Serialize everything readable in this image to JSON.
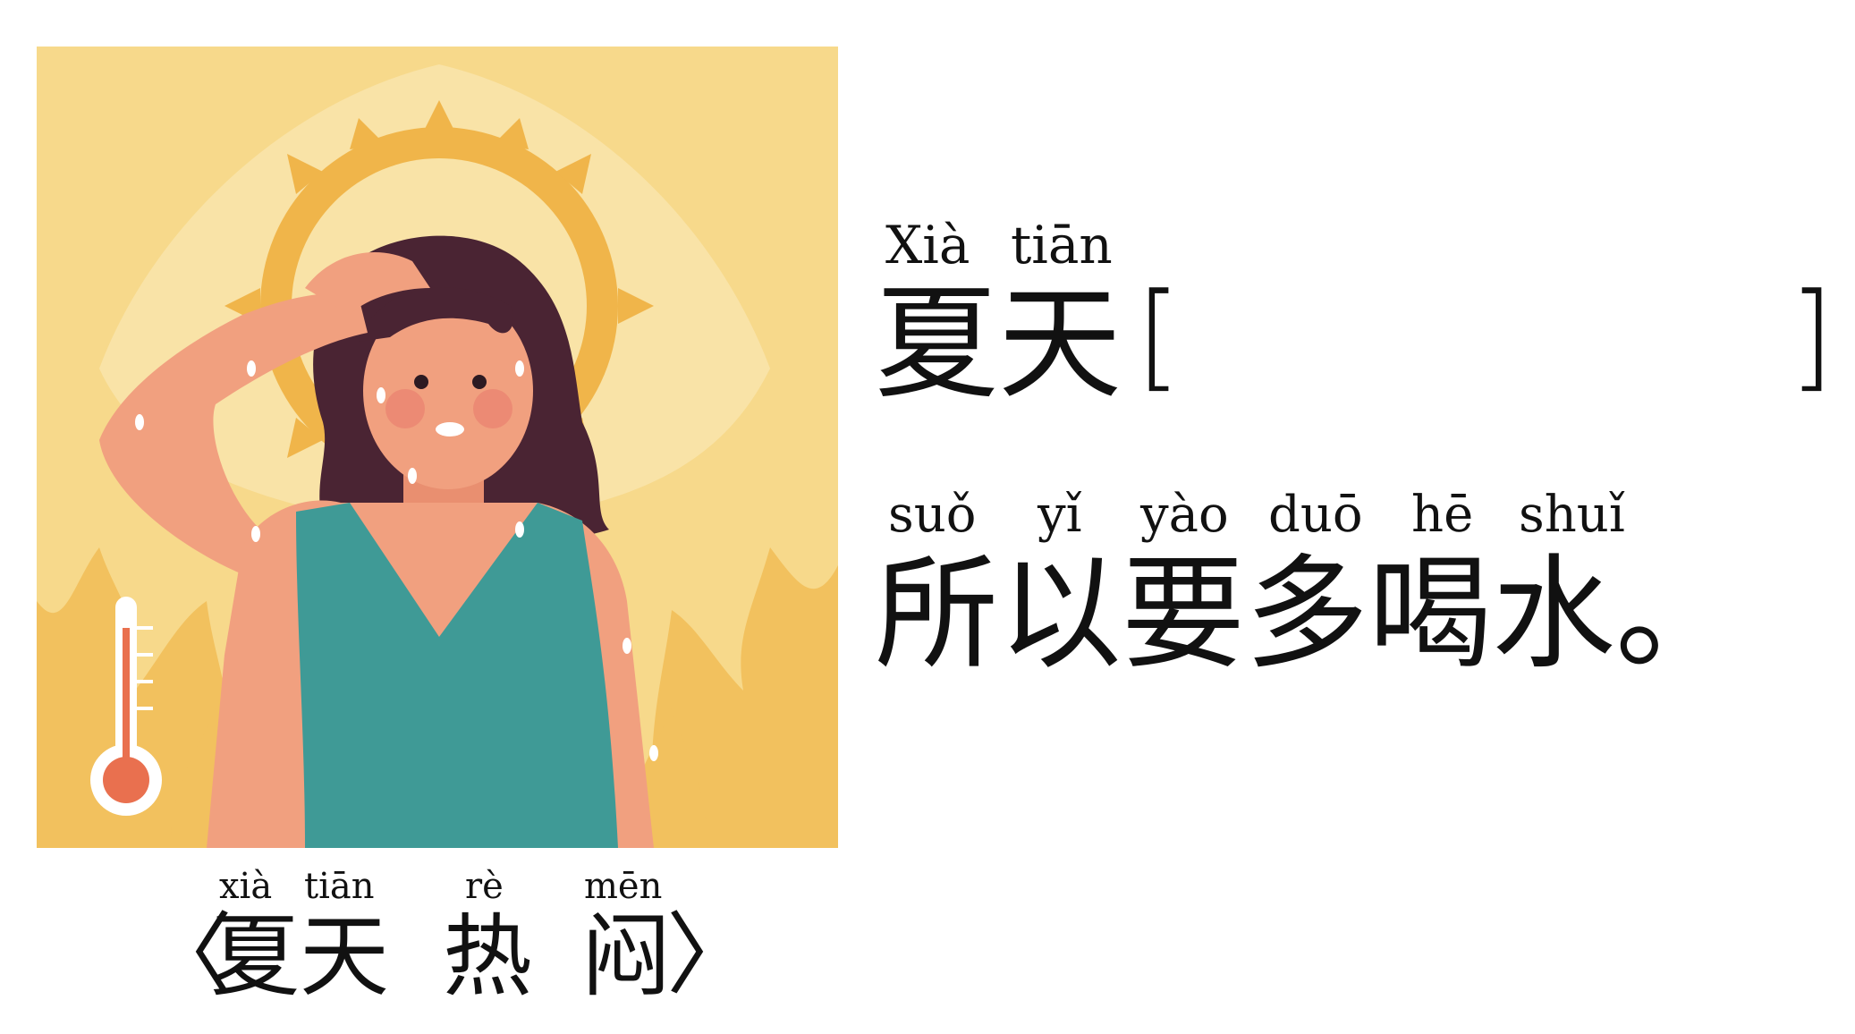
{
  "caption": {
    "pinyin": [
      "xià",
      "tiān",
      "rè",
      "mēn"
    ],
    "open_bracket": "〈",
    "chars": [
      "夏",
      "天",
      "热",
      "闷"
    ],
    "close_bracket": "〉"
  },
  "sentence1": {
    "pinyin": [
      "Xià",
      "tiān"
    ],
    "chars": [
      "夏",
      "天"
    ],
    "open_bracket": "[",
    "close_bracket": "]"
  },
  "sentence2": {
    "pinyin": [
      "suǒ",
      "yǐ",
      "yào",
      "duō",
      "hē",
      "shuǐ"
    ],
    "chars": [
      "所",
      "以",
      "要",
      "多",
      "喝",
      "水",
      "。"
    ]
  },
  "colors": {
    "background": "#f7d98b",
    "sun": "#f0b54a",
    "skin": "#f1a07f",
    "hair": "#4a2433",
    "dress": "#3f9a96",
    "flame": "#f2c15e",
    "thermometer_bulb": "#e9704f"
  }
}
